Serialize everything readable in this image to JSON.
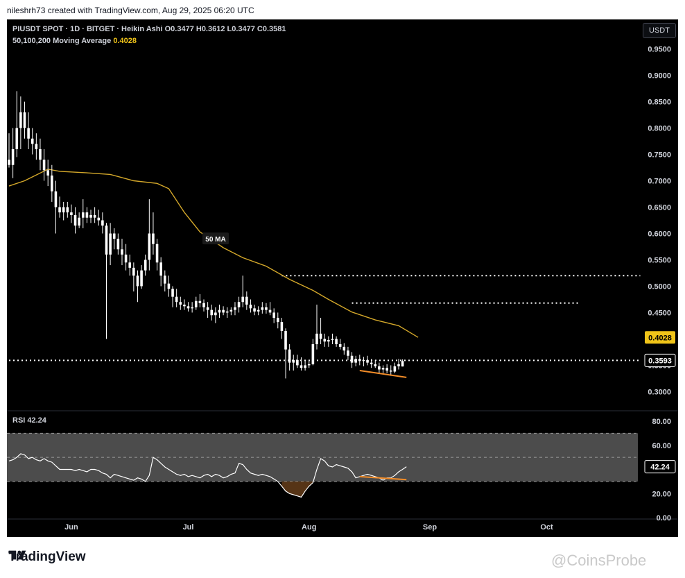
{
  "header": {
    "credit": "nileshrh73 created with TradingView.com, Aug 29, 2025 06:20 UTC"
  },
  "legend": {
    "symbol_line": "PIUSDT SPOT · 1D · BITGET · Heikin Ashi  O0.3477  H0.3612  L0.3477  C0.3581",
    "ma_label": "50,100,200 Moving Average",
    "ma_value": "0.4028"
  },
  "currency_button": "USDT",
  "rsi": {
    "label": "RSI  42.24",
    "value": "42.24",
    "band_upper": 70,
    "band_lower": 30,
    "mid": 50
  },
  "annotations": {
    "ma_tag": "50 MA"
  },
  "footer": {
    "logo_text": "TradingView",
    "watermark": "@CoinsProbe"
  },
  "colors": {
    "background": "#000000",
    "candle": "#ffffff",
    "ma_line": "#d4a82a",
    "divergence": "#f28c28",
    "ma_badge": "#f0c419",
    "rsi_band": "#5f5f5f"
  },
  "chart_data": {
    "type": "candlestick",
    "title": "PIUSDT SPOT · 1D · BITGET · Heikin Ashi",
    "x_ticks": [
      "Jun",
      "Jul",
      "Aug",
      "Sep",
      "Oct"
    ],
    "x_ticks_day_index": [
      16,
      46,
      77,
      108,
      138
    ],
    "y_ticks": [
      "0.9500",
      "0.9000",
      "0.8500",
      "0.8000",
      "0.7500",
      "0.7000",
      "0.6500",
      "0.6000",
      "0.5500",
      "0.5000",
      "0.4500",
      "0.4000",
      "0.3500",
      "0.3000"
    ],
    "ylim": [
      0.265,
      0.96
    ],
    "price_labels": [
      {
        "label": "0.4028",
        "value": 0.4028,
        "kind": "ma"
      },
      {
        "label": "0.3593",
        "value": 0.3593,
        "kind": "price"
      }
    ],
    "horizontal_levels": [
      {
        "value": 0.52,
        "from_index": 70,
        "to_index": 162
      },
      {
        "value": 0.468,
        "from_index": 88,
        "to_index": 146
      },
      {
        "value": 0.3593,
        "from_index": 0,
        "to_index": 162
      }
    ],
    "ma_series": {
      "name": "50 MA",
      "points": [
        [
          0,
          0.69
        ],
        [
          4,
          0.7
        ],
        [
          10,
          0.722
        ],
        [
          13,
          0.718
        ],
        [
          20,
          0.715
        ],
        [
          26,
          0.712
        ],
        [
          32,
          0.7
        ],
        [
          38,
          0.695
        ],
        [
          41,
          0.685
        ],
        [
          45,
          0.64
        ],
        [
          49,
          0.603
        ],
        [
          55,
          0.573
        ],
        [
          60,
          0.554
        ],
        [
          66,
          0.538
        ],
        [
          72,
          0.513
        ],
        [
          78,
          0.492
        ],
        [
          82,
          0.475
        ],
        [
          88,
          0.451
        ],
        [
          94,
          0.436
        ],
        [
          100,
          0.425
        ],
        [
          105,
          0.403
        ]
      ]
    },
    "divergence_line": {
      "x": [
        90,
        102
      ],
      "y": [
        0.34,
        0.327
      ]
    },
    "candles": [
      {
        "o": 0.74,
        "h": 0.79,
        "l": 0.725,
        "c": 0.73
      },
      {
        "o": 0.73,
        "h": 0.8,
        "l": 0.705,
        "c": 0.76
      },
      {
        "o": 0.76,
        "h": 0.87,
        "l": 0.745,
        "c": 0.8
      },
      {
        "o": 0.8,
        "h": 0.86,
        "l": 0.76,
        "c": 0.83
      },
      {
        "o": 0.83,
        "h": 0.85,
        "l": 0.78,
        "c": 0.8
      },
      {
        "o": 0.8,
        "h": 0.83,
        "l": 0.76,
        "c": 0.78
      },
      {
        "o": 0.78,
        "h": 0.8,
        "l": 0.75,
        "c": 0.77
      },
      {
        "o": 0.77,
        "h": 0.79,
        "l": 0.74,
        "c": 0.76
      },
      {
        "o": 0.76,
        "h": 0.78,
        "l": 0.72,
        "c": 0.74
      },
      {
        "o": 0.74,
        "h": 0.76,
        "l": 0.7,
        "c": 0.72
      },
      {
        "o": 0.72,
        "h": 0.74,
        "l": 0.69,
        "c": 0.71
      },
      {
        "o": 0.71,
        "h": 0.73,
        "l": 0.66,
        "c": 0.68
      },
      {
        "o": 0.68,
        "h": 0.7,
        "l": 0.6,
        "c": 0.65
      },
      {
        "o": 0.65,
        "h": 0.67,
        "l": 0.63,
        "c": 0.64
      },
      {
        "o": 0.64,
        "h": 0.66,
        "l": 0.625,
        "c": 0.65
      },
      {
        "o": 0.65,
        "h": 0.66,
        "l": 0.63,
        "c": 0.64
      },
      {
        "o": 0.64,
        "h": 0.655,
        "l": 0.62,
        "c": 0.635
      },
      {
        "o": 0.635,
        "h": 0.65,
        "l": 0.6,
        "c": 0.615
      },
      {
        "o": 0.615,
        "h": 0.64,
        "l": 0.61,
        "c": 0.63
      },
      {
        "o": 0.63,
        "h": 0.665,
        "l": 0.61,
        "c": 0.64
      },
      {
        "o": 0.64,
        "h": 0.65,
        "l": 0.62,
        "c": 0.63
      },
      {
        "o": 0.63,
        "h": 0.645,
        "l": 0.62,
        "c": 0.635
      },
      {
        "o": 0.635,
        "h": 0.65,
        "l": 0.62,
        "c": 0.63
      },
      {
        "o": 0.63,
        "h": 0.645,
        "l": 0.615,
        "c": 0.625
      },
      {
        "o": 0.625,
        "h": 0.64,
        "l": 0.6,
        "c": 0.615
      },
      {
        "o": 0.615,
        "h": 0.62,
        "l": 0.4,
        "c": 0.56
      },
      {
        "o": 0.56,
        "h": 0.62,
        "l": 0.54,
        "c": 0.6
      },
      {
        "o": 0.6,
        "h": 0.61,
        "l": 0.57,
        "c": 0.59
      },
      {
        "o": 0.59,
        "h": 0.6,
        "l": 0.56,
        "c": 0.57
      },
      {
        "o": 0.57,
        "h": 0.59,
        "l": 0.54,
        "c": 0.56
      },
      {
        "o": 0.56,
        "h": 0.58,
        "l": 0.53,
        "c": 0.545
      },
      {
        "o": 0.545,
        "h": 0.56,
        "l": 0.52,
        "c": 0.535
      },
      {
        "o": 0.535,
        "h": 0.545,
        "l": 0.49,
        "c": 0.52
      },
      {
        "o": 0.52,
        "h": 0.53,
        "l": 0.47,
        "c": 0.5
      },
      {
        "o": 0.5,
        "h": 0.54,
        "l": 0.495,
        "c": 0.53
      },
      {
        "o": 0.53,
        "h": 0.56,
        "l": 0.52,
        "c": 0.55
      },
      {
        "o": 0.55,
        "h": 0.665,
        "l": 0.53,
        "c": 0.6
      },
      {
        "o": 0.6,
        "h": 0.64,
        "l": 0.56,
        "c": 0.58
      },
      {
        "o": 0.58,
        "h": 0.59,
        "l": 0.53,
        "c": 0.545
      },
      {
        "o": 0.545,
        "h": 0.555,
        "l": 0.5,
        "c": 0.52
      },
      {
        "o": 0.52,
        "h": 0.53,
        "l": 0.49,
        "c": 0.505
      },
      {
        "o": 0.505,
        "h": 0.52,
        "l": 0.48,
        "c": 0.495
      },
      {
        "o": 0.495,
        "h": 0.5,
        "l": 0.46,
        "c": 0.48
      },
      {
        "o": 0.48,
        "h": 0.495,
        "l": 0.46,
        "c": 0.47
      },
      {
        "o": 0.47,
        "h": 0.48,
        "l": 0.455,
        "c": 0.465
      },
      {
        "o": 0.465,
        "h": 0.475,
        "l": 0.455,
        "c": 0.462
      },
      {
        "o": 0.462,
        "h": 0.47,
        "l": 0.452,
        "c": 0.458
      },
      {
        "o": 0.458,
        "h": 0.47,
        "l": 0.45,
        "c": 0.46
      },
      {
        "o": 0.46,
        "h": 0.48,
        "l": 0.455,
        "c": 0.472
      },
      {
        "o": 0.472,
        "h": 0.485,
        "l": 0.46,
        "c": 0.468
      },
      {
        "o": 0.468,
        "h": 0.475,
        "l": 0.452,
        "c": 0.46
      },
      {
        "o": 0.46,
        "h": 0.47,
        "l": 0.44,
        "c": 0.455
      },
      {
        "o": 0.455,
        "h": 0.465,
        "l": 0.435,
        "c": 0.445
      },
      {
        "o": 0.445,
        "h": 0.46,
        "l": 0.43,
        "c": 0.45
      },
      {
        "o": 0.45,
        "h": 0.465,
        "l": 0.44,
        "c": 0.455
      },
      {
        "o": 0.455,
        "h": 0.462,
        "l": 0.445,
        "c": 0.45
      },
      {
        "o": 0.45,
        "h": 0.46,
        "l": 0.44,
        "c": 0.452
      },
      {
        "o": 0.452,
        "h": 0.46,
        "l": 0.445,
        "c": 0.455
      },
      {
        "o": 0.455,
        "h": 0.47,
        "l": 0.445,
        "c": 0.46
      },
      {
        "o": 0.46,
        "h": 0.48,
        "l": 0.45,
        "c": 0.47
      },
      {
        "o": 0.47,
        "h": 0.52,
        "l": 0.46,
        "c": 0.48
      },
      {
        "o": 0.48,
        "h": 0.49,
        "l": 0.455,
        "c": 0.465
      },
      {
        "o": 0.465,
        "h": 0.475,
        "l": 0.45,
        "c": 0.458
      },
      {
        "o": 0.458,
        "h": 0.465,
        "l": 0.445,
        "c": 0.452
      },
      {
        "o": 0.452,
        "h": 0.462,
        "l": 0.445,
        "c": 0.455
      },
      {
        "o": 0.455,
        "h": 0.47,
        "l": 0.448,
        "c": 0.46
      },
      {
        "o": 0.46,
        "h": 0.468,
        "l": 0.448,
        "c": 0.455
      },
      {
        "o": 0.455,
        "h": 0.47,
        "l": 0.445,
        "c": 0.45
      },
      {
        "o": 0.45,
        "h": 0.458,
        "l": 0.43,
        "c": 0.44
      },
      {
        "o": 0.44,
        "h": 0.45,
        "l": 0.42,
        "c": 0.432
      },
      {
        "o": 0.432,
        "h": 0.44,
        "l": 0.4,
        "c": 0.415
      },
      {
        "o": 0.415,
        "h": 0.42,
        "l": 0.325,
        "c": 0.38
      },
      {
        "o": 0.38,
        "h": 0.39,
        "l": 0.34,
        "c": 0.355
      },
      {
        "o": 0.355,
        "h": 0.37,
        "l": 0.34,
        "c": 0.36
      },
      {
        "o": 0.36,
        "h": 0.37,
        "l": 0.345,
        "c": 0.35
      },
      {
        "o": 0.35,
        "h": 0.365,
        "l": 0.34,
        "c": 0.345
      },
      {
        "o": 0.345,
        "h": 0.36,
        "l": 0.34,
        "c": 0.35
      },
      {
        "o": 0.35,
        "h": 0.36,
        "l": 0.345,
        "c": 0.352
      },
      {
        "o": 0.352,
        "h": 0.4,
        "l": 0.35,
        "c": 0.39
      },
      {
        "o": 0.39,
        "h": 0.465,
        "l": 0.38,
        "c": 0.41
      },
      {
        "o": 0.41,
        "h": 0.44,
        "l": 0.39,
        "c": 0.4
      },
      {
        "o": 0.4,
        "h": 0.41,
        "l": 0.385,
        "c": 0.395
      },
      {
        "o": 0.395,
        "h": 0.405,
        "l": 0.385,
        "c": 0.398
      },
      {
        "o": 0.398,
        "h": 0.41,
        "l": 0.39,
        "c": 0.4
      },
      {
        "o": 0.4,
        "h": 0.405,
        "l": 0.385,
        "c": 0.39
      },
      {
        "o": 0.39,
        "h": 0.4,
        "l": 0.38,
        "c": 0.385
      },
      {
        "o": 0.385,
        "h": 0.392,
        "l": 0.37,
        "c": 0.378
      },
      {
        "o": 0.378,
        "h": 0.385,
        "l": 0.36,
        "c": 0.368
      },
      {
        "o": 0.368,
        "h": 0.375,
        "l": 0.345,
        "c": 0.355
      },
      {
        "o": 0.355,
        "h": 0.368,
        "l": 0.348,
        "c": 0.362
      },
      {
        "o": 0.362,
        "h": 0.37,
        "l": 0.35,
        "c": 0.358
      },
      {
        "o": 0.358,
        "h": 0.366,
        "l": 0.348,
        "c": 0.36
      },
      {
        "o": 0.36,
        "h": 0.368,
        "l": 0.35,
        "c": 0.355
      },
      {
        "o": 0.355,
        "h": 0.362,
        "l": 0.345,
        "c": 0.352
      },
      {
        "o": 0.352,
        "h": 0.36,
        "l": 0.345,
        "c": 0.348
      },
      {
        "o": 0.348,
        "h": 0.355,
        "l": 0.335,
        "c": 0.342
      },
      {
        "o": 0.342,
        "h": 0.35,
        "l": 0.335,
        "c": 0.345
      },
      {
        "o": 0.345,
        "h": 0.352,
        "l": 0.335,
        "c": 0.34
      },
      {
        "o": 0.34,
        "h": 0.35,
        "l": 0.33,
        "c": 0.338
      },
      {
        "o": 0.338,
        "h": 0.355,
        "l": 0.335,
        "c": 0.348
      },
      {
        "o": 0.348,
        "h": 0.362,
        "l": 0.342,
        "c": 0.352
      },
      {
        "o": 0.3477,
        "h": 0.3612,
        "l": 0.3477,
        "c": 0.3581
      }
    ],
    "rsi_chart": {
      "type": "line",
      "name": "RSI",
      "y_ticks": [
        "80.00",
        "60.00",
        "20.00",
        "0.00"
      ],
      "ylim": [
        0,
        80
      ],
      "values": [
        47,
        48,
        50,
        53,
        52,
        49,
        50,
        48,
        47,
        49,
        47,
        46,
        43,
        40,
        40,
        40,
        40,
        39,
        40,
        39,
        38,
        40,
        40,
        39,
        37,
        36,
        33,
        36,
        35,
        34,
        33,
        32,
        31,
        33,
        32,
        30,
        35,
        50,
        48,
        45,
        42,
        40,
        38,
        36,
        35,
        36,
        34,
        35,
        34,
        33,
        35,
        36,
        34,
        36,
        35,
        33,
        34,
        36,
        37,
        45,
        44,
        40,
        37,
        36,
        35,
        36,
        35,
        34,
        32,
        30,
        26,
        22,
        20,
        19,
        18,
        17,
        22,
        26,
        29,
        40,
        49,
        47,
        43,
        42,
        44,
        43,
        42,
        41,
        38,
        33,
        34,
        35,
        36,
        35,
        34,
        33,
        31,
        33,
        33,
        35,
        38,
        40,
        42.24
      ],
      "band": [
        30,
        70
      ],
      "divergence_line": {
        "x": [
          90,
          102
        ],
        "y": [
          34,
          31.5
        ]
      }
    }
  }
}
